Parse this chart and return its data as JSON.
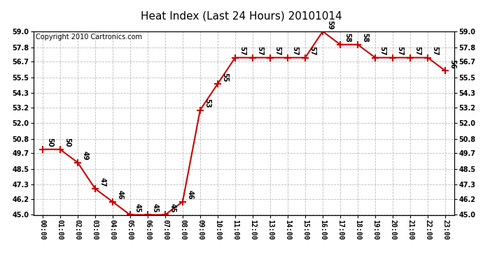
{
  "title": "Heat Index (Last 24 Hours) 20101014",
  "copyright": "Copyright 2010 Cartronics.com",
  "hours": [
    "00:00",
    "01:00",
    "02:00",
    "03:00",
    "04:00",
    "05:00",
    "06:00",
    "07:00",
    "08:00",
    "09:00",
    "10:00",
    "11:00",
    "12:00",
    "13:00",
    "14:00",
    "15:00",
    "16:00",
    "17:00",
    "18:00",
    "19:00",
    "20:00",
    "21:00",
    "22:00",
    "23:00"
  ],
  "values": [
    50,
    50,
    49,
    47,
    46,
    45,
    45,
    45,
    46,
    53,
    55,
    57,
    57,
    57,
    57,
    57,
    59,
    58,
    58,
    57,
    57,
    57,
    57,
    56
  ],
  "ylim_min": 45.0,
  "ylim_max": 59.0,
  "yticks": [
    45.0,
    46.2,
    47.3,
    48.5,
    49.7,
    50.8,
    52.0,
    53.2,
    54.3,
    55.5,
    56.7,
    57.8,
    59.0
  ],
  "line_color": "#cc0000",
  "marker_color": "#cc0000",
  "bg_color": "#ffffff",
  "grid_color": "#bbbbbb",
  "title_fontsize": 11,
  "tick_fontsize": 7,
  "annot_fontsize": 7,
  "copyright_fontsize": 7
}
